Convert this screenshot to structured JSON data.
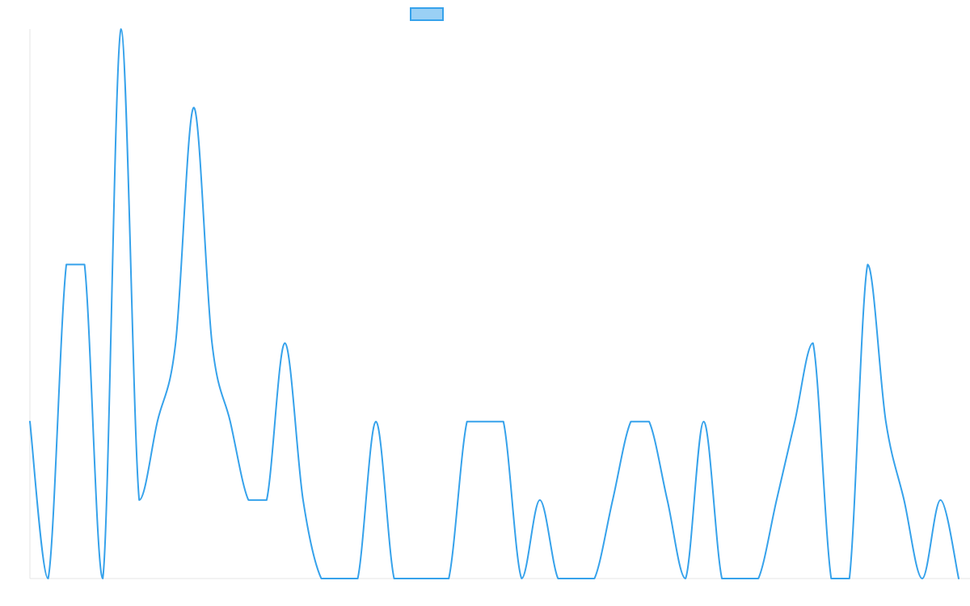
{
  "chart_data": {
    "type": "line",
    "title": "",
    "xlabel": "",
    "ylabel": "",
    "legend": {
      "placement": "top-center",
      "entries": [
        {
          "label": ""
        }
      ]
    },
    "grid": false,
    "x_range": [
      0,
      51
    ],
    "ylim": [
      0,
      7
    ],
    "series": [
      {
        "values": [
          2,
          0,
          4,
          4,
          0,
          7,
          1,
          2,
          3,
          6,
          3,
          2,
          1,
          1,
          3,
          1,
          0,
          0,
          0,
          2,
          0,
          0,
          0,
          0,
          2,
          2,
          2,
          0,
          1,
          0,
          0,
          0,
          1,
          2,
          2,
          1,
          0,
          2,
          0,
          0,
          0,
          1,
          2,
          3,
          0,
          0,
          4,
          2,
          1,
          0,
          1,
          0
        ]
      }
    ],
    "colors": {
      "line": "#36a2eb",
      "legend_fill": "#9ad0f5",
      "axis": "#e5e5e5"
    }
  }
}
